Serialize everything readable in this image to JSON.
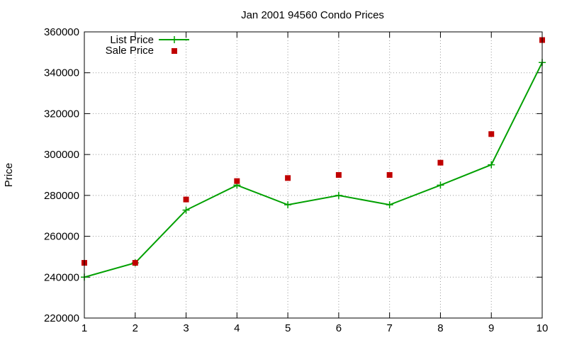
{
  "chart_data": {
    "type": "line",
    "title": "Jan 2001 94560 Condo Prices",
    "xlabel": "",
    "ylabel": "Price",
    "xlim": [
      1,
      10
    ],
    "ylim": [
      220000,
      360000
    ],
    "x_ticks": [
      "1",
      "2",
      "3",
      "4",
      "5",
      "6",
      "7",
      "8",
      "9",
      "10"
    ],
    "y_ticks": [
      "220000",
      "240000",
      "260000",
      "280000",
      "300000",
      "320000",
      "340000",
      "360000"
    ],
    "grid": true,
    "legend_position": "top-left",
    "series": [
      {
        "name": "List Price",
        "style": "line+cross",
        "color": "#00a000",
        "points": [
          {
            "x": 1,
            "y": 240000
          },
          {
            "x": 2,
            "y": 247000
          },
          {
            "x": 3,
            "y": 272800
          },
          {
            "x": 4,
            "y": 285000
          },
          {
            "x": 5,
            "y": 275400
          },
          {
            "x": 6,
            "y": 280000
          },
          {
            "x": 7,
            "y": 275400
          },
          {
            "x": 8,
            "y": 285000
          },
          {
            "x": 9,
            "y": 295000
          },
          {
            "x": 10,
            "y": 345000
          }
        ]
      },
      {
        "name": "Sale Price",
        "style": "square",
        "color": "#c00000",
        "points": [
          {
            "x": 1,
            "y": 247000
          },
          {
            "x": 2,
            "y": 247000
          },
          {
            "x": 3,
            "y": 278000
          },
          {
            "x": 4,
            "y": 287000
          },
          {
            "x": 5,
            "y": 288500
          },
          {
            "x": 6,
            "y": 290000
          },
          {
            "x": 7,
            "y": 290000
          },
          {
            "x": 8,
            "y": 296000
          },
          {
            "x": 9,
            "y": 310000
          },
          {
            "x": 10,
            "y": 356000
          }
        ]
      }
    ]
  }
}
